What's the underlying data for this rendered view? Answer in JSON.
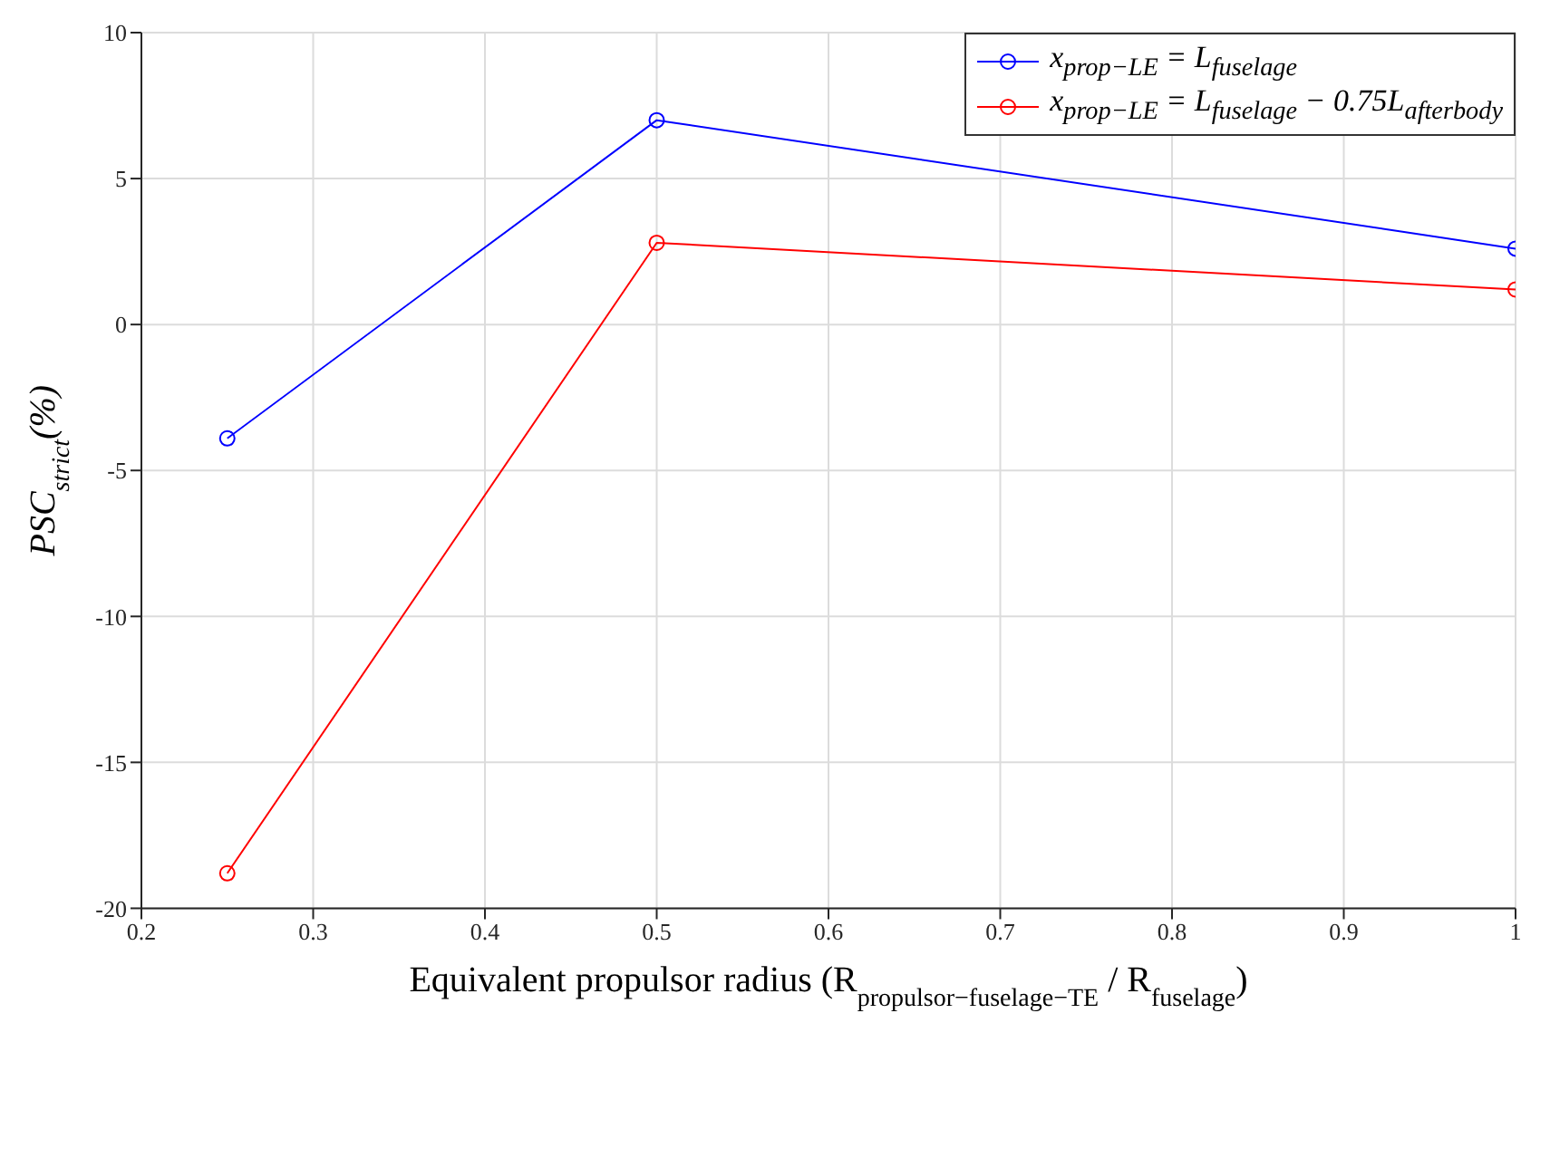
{
  "chart_data": {
    "type": "line",
    "xlabel": "Equivalent propulsor radius (R$_{propulsor−fuselage−TE}$ / R$_{fuselage}$)",
    "ylabel": "PSC$_{strict}$(%)",
    "x": [
      0.25,
      0.5,
      1
    ],
    "series": [
      {
        "name": "x$_{prop−LE}$ = L$_{fuselage}$",
        "color": "#0000ff",
        "values": [
          -3.9,
          7.0,
          2.6
        ]
      },
      {
        "name": "x$_{prop−LE}$ = L$_{fuselage}$ − 0.75L$_{afterbody}$",
        "color": "#ff0000",
        "values": [
          -18.8,
          2.8,
          1.2
        ]
      }
    ],
    "xlim": [
      0.2,
      1
    ],
    "xticks": [
      0.2,
      0.3,
      0.4,
      0.5,
      0.6,
      0.7,
      0.8,
      0.9,
      1
    ],
    "ylim": [
      -20,
      10
    ],
    "yticks": [
      -20,
      -15,
      -10,
      -5,
      0,
      5,
      10
    ],
    "grid": true,
    "legend": "top right",
    "marker": "circle",
    "line_style": "solid"
  }
}
